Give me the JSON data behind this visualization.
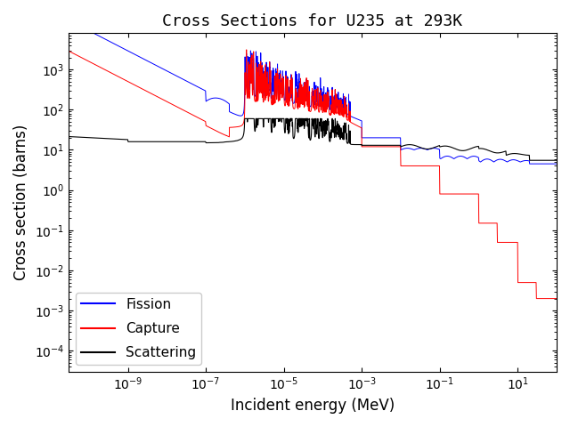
{
  "title": "Cross Sections for U235 at 293K",
  "xlabel": "Incident energy (MeV)",
  "ylabel": "Cross section (barns)",
  "xlim": [
    3e-11,
    100.0
  ],
  "ylim": [
    3e-05,
    8000
  ],
  "legend_labels": [
    "Fission",
    "Capture",
    "Scattering"
  ],
  "legend_colors": [
    "blue",
    "red",
    "black"
  ],
  "legend_loc": "lower left",
  "background_color": "#ffffff"
}
